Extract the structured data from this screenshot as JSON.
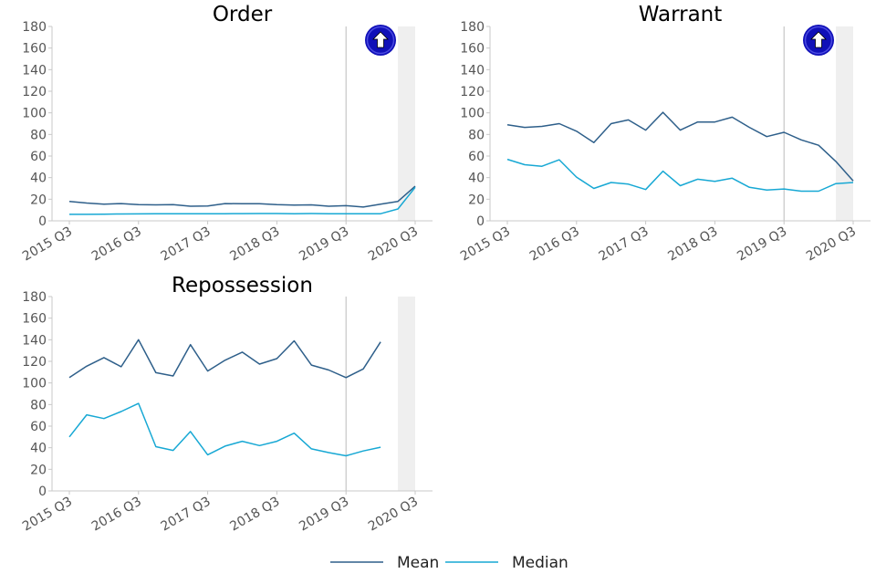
{
  "colors": {
    "mean": "#2e5f8a",
    "median": "#17a8d4",
    "axis": "#c8c8c8",
    "marker_line": "#bbbbbb",
    "shade": "#efefef",
    "badge_fill": "#1010b8",
    "badge_arrow": "#ffffff"
  },
  "legend": {
    "placement": "bottom-center",
    "items": [
      {
        "key": "mean",
        "label": "Mean"
      },
      {
        "key": "median",
        "label": "Median"
      }
    ]
  },
  "chart_data": [
    {
      "type": "line",
      "title": "Order",
      "ylim": [
        0,
        180
      ],
      "yticks": [
        0,
        20,
        40,
        60,
        80,
        100,
        120,
        140,
        160,
        180
      ],
      "x_start_quarter": "2015 Q3",
      "x_tick_labels": [
        "2015 Q3",
        "2016 Q3",
        "2017 Q3",
        "2018 Q3",
        "2019 Q3",
        "2020 Q3"
      ],
      "marker_line_at": "2019 Q3",
      "shaded_range": [
        "2020 Q2",
        "2020 Q3"
      ],
      "badge": "up-arrow-icon",
      "series": [
        {
          "key": "mean",
          "name": "Mean",
          "values": [
            18,
            16.5,
            15.5,
            16,
            15,
            14.8,
            15,
            13.5,
            13.8,
            16,
            15.8,
            15.8,
            15,
            14.5,
            14.8,
            13.5,
            14,
            12.8,
            15.5,
            18,
            32
          ]
        },
        {
          "key": "median",
          "name": "Median",
          "values": [
            6,
            6,
            6.2,
            6.3,
            6.4,
            6.5,
            6.5,
            6.5,
            6.6,
            6.6,
            6.7,
            6.8,
            6.8,
            6.6,
            6.8,
            6.6,
            6.6,
            6.5,
            6.6,
            11,
            31
          ]
        }
      ]
    },
    {
      "type": "line",
      "title": "Warrant",
      "ylim": [
        0,
        180
      ],
      "yticks": [
        0,
        20,
        40,
        60,
        80,
        100,
        120,
        140,
        160,
        180
      ],
      "x_start_quarter": "2015 Q3",
      "x_tick_labels": [
        "2015 Q3",
        "2016 Q3",
        "2017 Q3",
        "2018 Q3",
        "2019 Q3",
        "2020 Q3"
      ],
      "marker_line_at": "2019 Q3",
      "shaded_range": [
        "2020 Q2",
        "2020 Q3"
      ],
      "badge": "up-arrow-icon",
      "series": [
        {
          "key": "mean",
          "name": "Mean",
          "values": [
            89,
            86.5,
            87.5,
            90,
            83,
            72.5,
            90,
            93.5,
            84,
            100.5,
            84,
            91.5,
            91.5,
            96,
            86.5,
            78,
            82,
            75,
            70,
            55,
            37
          ]
        },
        {
          "key": "median",
          "name": "Median",
          "values": [
            57,
            52,
            50.5,
            56.5,
            40.5,
            30,
            35.5,
            34,
            29,
            46,
            32.5,
            38.5,
            36.5,
            39.5,
            31,
            28.5,
            29.5,
            27.5,
            27.5,
            34.5,
            35.5
          ]
        }
      ]
    },
    {
      "type": "line",
      "title": "Repossession",
      "ylim": [
        0,
        180
      ],
      "yticks": [
        0,
        20,
        40,
        60,
        80,
        100,
        120,
        140,
        160,
        180
      ],
      "x_start_quarter": "2015 Q3",
      "x_tick_labels": [
        "2015 Q3",
        "2016 Q3",
        "2017 Q3",
        "2018 Q3",
        "2019 Q3",
        "2020 Q3"
      ],
      "marker_line_at": "2019 Q3",
      "shaded_range": [
        "2020 Q2",
        "2020 Q3"
      ],
      "series": [
        {
          "key": "mean",
          "name": "Mean",
          "values": [
            105,
            115.5,
            123.5,
            115,
            140,
            109.5,
            106.5,
            135.5,
            111,
            121,
            128.5,
            117.5,
            122.5,
            139,
            116.5,
            112,
            105,
            113,
            138
          ]
        },
        {
          "key": "median",
          "name": "Median",
          "values": [
            50,
            70.5,
            67,
            73.5,
            81,
            41,
            37.5,
            55,
            33.5,
            41.5,
            46,
            42,
            46,
            53.5,
            39,
            35.5,
            32.5,
            37,
            40.5
          ]
        }
      ]
    }
  ]
}
